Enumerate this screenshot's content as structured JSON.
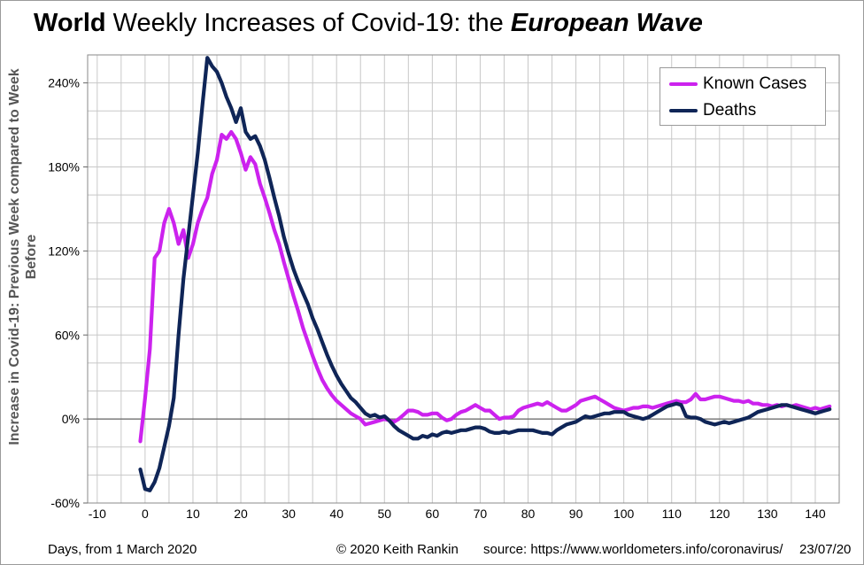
{
  "title": {
    "part1": "World",
    "part2": " Weekly Increases of Covid-19: the ",
    "part3": "European Wave"
  },
  "footer": {
    "left": "Days, from 1 March 2020",
    "credit": "© 2020  Keith Rankin",
    "source": "source:  https://www.worldometers.info/coronavirus/",
    "date": "23/07/20"
  },
  "colors": {
    "cases": "#cc22ee",
    "deaths": "#0f2557",
    "grid": "#c8c8c8"
  },
  "chart_data": {
    "type": "line",
    "xlabel": "Days, from 1 March 2020",
    "ylabel": "Increase in Covid-19: Previous Week compared to Week Before",
    "xlim": [
      -12,
      145
    ],
    "ylim": [
      -60,
      260
    ],
    "x_ticks": [
      -10,
      0,
      10,
      20,
      30,
      40,
      50,
      60,
      70,
      80,
      90,
      100,
      110,
      120,
      130,
      140
    ],
    "x_tick_labels": [
      "-10",
      "0",
      "10",
      "20",
      "30",
      "40",
      "50",
      "60",
      "70",
      "80",
      "90",
      "100",
      "110",
      "120",
      "130",
      "140"
    ],
    "y_ticks": [
      -60,
      0,
      60,
      120,
      180,
      240
    ],
    "y_tick_labels": [
      "-60%",
      "0%",
      "60%",
      "120%",
      "180%",
      "240%"
    ],
    "grid": true,
    "legend_position": "top-right",
    "series": [
      {
        "name": "Known Cases",
        "color": "#cc22ee",
        "points": [
          [
            -1,
            -16
          ],
          [
            0,
            15
          ],
          [
            1,
            50
          ],
          [
            2,
            115
          ],
          [
            3,
            120
          ],
          [
            4,
            140
          ],
          [
            5,
            150
          ],
          [
            6,
            140
          ],
          [
            7,
            125
          ],
          [
            8,
            135
          ],
          [
            9,
            115
          ],
          [
            10,
            125
          ],
          [
            11,
            140
          ],
          [
            12,
            150
          ],
          [
            13,
            158
          ],
          [
            14,
            175
          ],
          [
            15,
            185
          ],
          [
            16,
            203
          ],
          [
            17,
            200
          ],
          [
            18,
            205
          ],
          [
            19,
            200
          ],
          [
            20,
            190
          ],
          [
            21,
            178
          ],
          [
            22,
            187
          ],
          [
            23,
            182
          ],
          [
            24,
            168
          ],
          [
            25,
            158
          ],
          [
            26,
            147
          ],
          [
            27,
            135
          ],
          [
            28,
            125
          ],
          [
            29,
            112
          ],
          [
            30,
            100
          ],
          [
            31,
            88
          ],
          [
            32,
            77
          ],
          [
            33,
            65
          ],
          [
            34,
            55
          ],
          [
            35,
            45
          ],
          [
            36,
            36
          ],
          [
            37,
            28
          ],
          [
            38,
            22
          ],
          [
            39,
            17
          ],
          [
            40,
            13
          ],
          [
            41,
            10
          ],
          [
            42,
            7
          ],
          [
            43,
            4
          ],
          [
            44,
            2
          ],
          [
            45,
            0
          ],
          [
            46,
            -4
          ],
          [
            47,
            -3
          ],
          [
            48,
            -2
          ],
          [
            49,
            -1
          ],
          [
            50,
            0
          ],
          [
            51,
            -1
          ],
          [
            52,
            -2
          ],
          [
            53,
            0
          ],
          [
            54,
            3
          ],
          [
            55,
            6
          ],
          [
            56,
            6
          ],
          [
            57,
            5
          ],
          [
            58,
            3
          ],
          [
            59,
            3
          ],
          [
            60,
            4
          ],
          [
            61,
            4
          ],
          [
            62,
            1
          ],
          [
            63,
            -1
          ],
          [
            64,
            0
          ],
          [
            65,
            3
          ],
          [
            66,
            5
          ],
          [
            67,
            6
          ],
          [
            68,
            8
          ],
          [
            69,
            10
          ],
          [
            70,
            8
          ],
          [
            71,
            6
          ],
          [
            72,
            6
          ],
          [
            73,
            3
          ],
          [
            74,
            0
          ],
          [
            75,
            1
          ],
          [
            76,
            1
          ],
          [
            77,
            2
          ],
          [
            78,
            6
          ],
          [
            79,
            8
          ],
          [
            80,
            9
          ],
          [
            81,
            10
          ],
          [
            82,
            11
          ],
          [
            83,
            10
          ],
          [
            84,
            12
          ],
          [
            85,
            10
          ],
          [
            86,
            8
          ],
          [
            87,
            6
          ],
          [
            88,
            6
          ],
          [
            89,
            8
          ],
          [
            90,
            10
          ],
          [
            91,
            13
          ],
          [
            92,
            14
          ],
          [
            93,
            15
          ],
          [
            94,
            16
          ],
          [
            95,
            14
          ],
          [
            96,
            12
          ],
          [
            97,
            10
          ],
          [
            98,
            8
          ],
          [
            99,
            7
          ],
          [
            100,
            6
          ],
          [
            101,
            7
          ],
          [
            102,
            8
          ],
          [
            103,
            8
          ],
          [
            104,
            9
          ],
          [
            105,
            9
          ],
          [
            106,
            8
          ],
          [
            107,
            9
          ],
          [
            108,
            10
          ],
          [
            109,
            11
          ],
          [
            110,
            12
          ],
          [
            111,
            13
          ],
          [
            112,
            12
          ],
          [
            113,
            12
          ],
          [
            114,
            14
          ],
          [
            115,
            18
          ],
          [
            116,
            14
          ],
          [
            117,
            14
          ],
          [
            118,
            15
          ],
          [
            119,
            16
          ],
          [
            120,
            16
          ],
          [
            121,
            15
          ],
          [
            122,
            14
          ],
          [
            123,
            13
          ],
          [
            124,
            13
          ],
          [
            125,
            12
          ],
          [
            126,
            13
          ],
          [
            127,
            11
          ],
          [
            128,
            11
          ],
          [
            129,
            10
          ],
          [
            130,
            10
          ],
          [
            131,
            9
          ],
          [
            132,
            10
          ],
          [
            133,
            9
          ],
          [
            134,
            10
          ],
          [
            135,
            9
          ],
          [
            136,
            10
          ],
          [
            137,
            9
          ],
          [
            138,
            8
          ],
          [
            139,
            7
          ],
          [
            140,
            8
          ],
          [
            141,
            7
          ],
          [
            142,
            8
          ],
          [
            143,
            9
          ]
        ]
      },
      {
        "name": "Deaths",
        "color": "#0f2557",
        "points": [
          [
            -1,
            -36
          ],
          [
            0,
            -50
          ],
          [
            1,
            -51
          ],
          [
            2,
            -45
          ],
          [
            3,
            -35
          ],
          [
            4,
            -20
          ],
          [
            5,
            -5
          ],
          [
            6,
            15
          ],
          [
            7,
            60
          ],
          [
            8,
            100
          ],
          [
            9,
            130
          ],
          [
            10,
            160
          ],
          [
            11,
            190
          ],
          [
            12,
            225
          ],
          [
            13,
            258
          ],
          [
            14,
            252
          ],
          [
            15,
            248
          ],
          [
            16,
            240
          ],
          [
            17,
            230
          ],
          [
            18,
            222
          ],
          [
            19,
            212
          ],
          [
            20,
            222
          ],
          [
            21,
            205
          ],
          [
            22,
            200
          ],
          [
            23,
            202
          ],
          [
            24,
            195
          ],
          [
            25,
            185
          ],
          [
            26,
            172
          ],
          [
            27,
            158
          ],
          [
            28,
            145
          ],
          [
            29,
            130
          ],
          [
            30,
            118
          ],
          [
            31,
            107
          ],
          [
            32,
            98
          ],
          [
            33,
            90
          ],
          [
            34,
            82
          ],
          [
            35,
            72
          ],
          [
            36,
            64
          ],
          [
            37,
            55
          ],
          [
            38,
            46
          ],
          [
            39,
            38
          ],
          [
            40,
            31
          ],
          [
            41,
            25
          ],
          [
            42,
            20
          ],
          [
            43,
            15
          ],
          [
            44,
            12
          ],
          [
            45,
            8
          ],
          [
            46,
            4
          ],
          [
            47,
            2
          ],
          [
            48,
            3
          ],
          [
            49,
            1
          ],
          [
            50,
            2
          ],
          [
            51,
            -1
          ],
          [
            52,
            -5
          ],
          [
            53,
            -8
          ],
          [
            54,
            -10
          ],
          [
            55,
            -12
          ],
          [
            56,
            -14
          ],
          [
            57,
            -14
          ],
          [
            58,
            -12
          ],
          [
            59,
            -13
          ],
          [
            60,
            -11
          ],
          [
            61,
            -12
          ],
          [
            62,
            -10
          ],
          [
            63,
            -9
          ],
          [
            64,
            -10
          ],
          [
            65,
            -9
          ],
          [
            66,
            -8
          ],
          [
            67,
            -8
          ],
          [
            68,
            -7
          ],
          [
            69,
            -6
          ],
          [
            70,
            -6
          ],
          [
            71,
            -7
          ],
          [
            72,
            -9
          ],
          [
            73,
            -10
          ],
          [
            74,
            -10
          ],
          [
            75,
            -9
          ],
          [
            76,
            -10
          ],
          [
            77,
            -9
          ],
          [
            78,
            -8
          ],
          [
            79,
            -8
          ],
          [
            80,
            -8
          ],
          [
            81,
            -8
          ],
          [
            82,
            -9
          ],
          [
            83,
            -10
          ],
          [
            84,
            -10
          ],
          [
            85,
            -11
          ],
          [
            86,
            -8
          ],
          [
            87,
            -6
          ],
          [
            88,
            -4
          ],
          [
            89,
            -3
          ],
          [
            90,
            -2
          ],
          [
            91,
            0
          ],
          [
            92,
            2
          ],
          [
            93,
            1
          ],
          [
            94,
            2
          ],
          [
            95,
            3
          ],
          [
            96,
            4
          ],
          [
            97,
            4
          ],
          [
            98,
            5
          ],
          [
            99,
            5
          ],
          [
            100,
            5
          ],
          [
            101,
            3
          ],
          [
            102,
            2
          ],
          [
            103,
            1
          ],
          [
            104,
            0
          ],
          [
            105,
            1
          ],
          [
            106,
            3
          ],
          [
            107,
            5
          ],
          [
            108,
            7
          ],
          [
            109,
            9
          ],
          [
            110,
            10
          ],
          [
            111,
            11
          ],
          [
            112,
            10
          ],
          [
            113,
            2
          ],
          [
            114,
            1
          ],
          [
            115,
            1
          ],
          [
            116,
            0
          ],
          [
            117,
            -2
          ],
          [
            118,
            -3
          ],
          [
            119,
            -4
          ],
          [
            120,
            -3
          ],
          [
            121,
            -2
          ],
          [
            122,
            -3
          ],
          [
            123,
            -2
          ],
          [
            124,
            -1
          ],
          [
            125,
            0
          ],
          [
            126,
            1
          ],
          [
            127,
            3
          ],
          [
            128,
            5
          ],
          [
            129,
            6
          ],
          [
            130,
            7
          ],
          [
            131,
            8
          ],
          [
            132,
            9
          ],
          [
            133,
            10
          ],
          [
            134,
            10
          ],
          [
            135,
            9
          ],
          [
            136,
            8
          ],
          [
            137,
            7
          ],
          [
            138,
            6
          ],
          [
            139,
            5
          ],
          [
            140,
            4
          ],
          [
            141,
            5
          ],
          [
            142,
            6
          ],
          [
            143,
            7
          ]
        ]
      }
    ]
  }
}
